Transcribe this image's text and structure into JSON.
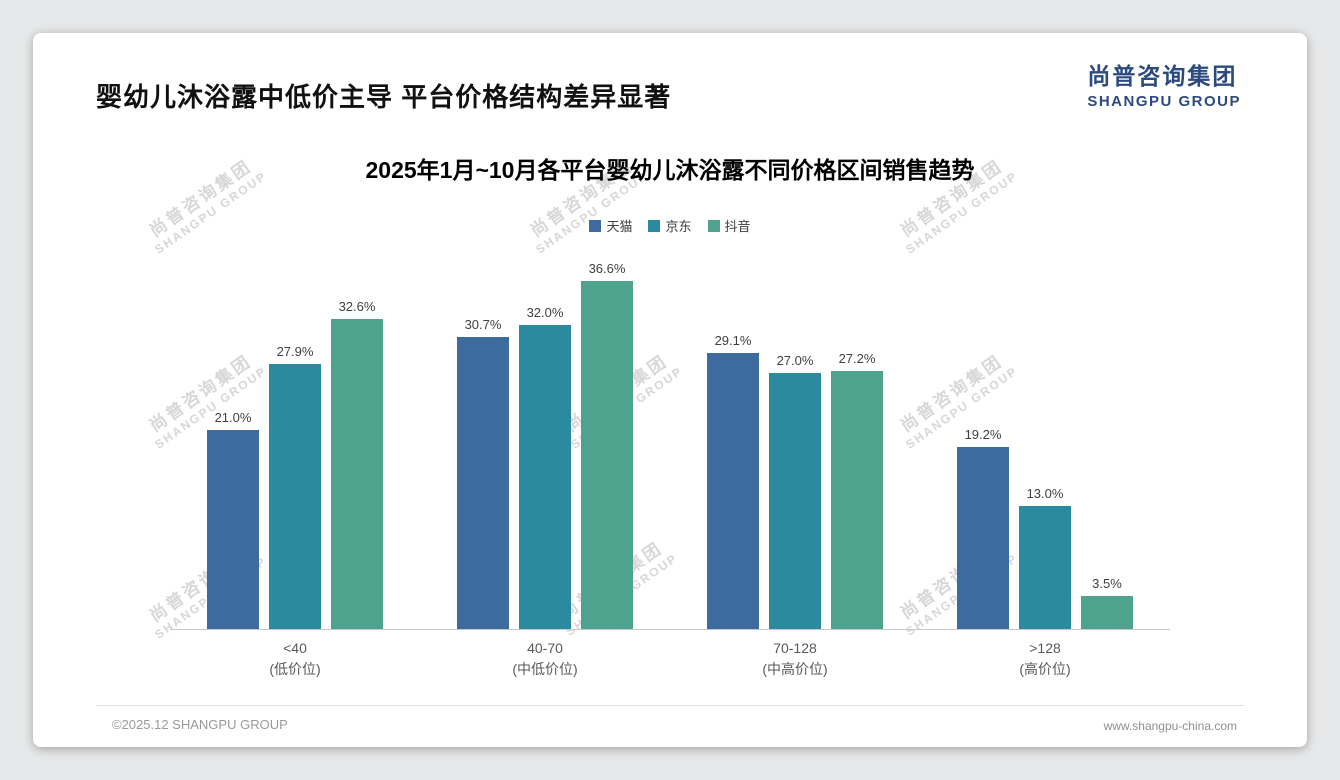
{
  "page": {
    "title": "婴幼儿沐浴露中低价主导 平台价格结构差异显著",
    "logo": {
      "cn": "尚普咨询集团",
      "en": "SHANGPU GROUP"
    },
    "watermark": {
      "line1": "尚普咨询集团",
      "line2": "SHANGPU GROUP"
    },
    "footer": {
      "left": "©2025.12 SHANGPU GROUP",
      "right": "www.shangpu-china.com"
    }
  },
  "chart_data": {
    "type": "bar",
    "title": "2025年1月~10月各平台婴幼儿沐浴露不同价格区间销售趋势",
    "categories": [
      {
        "label": "<40",
        "sub": "(低价位)"
      },
      {
        "label": "40-70",
        "sub": "(中低价位)"
      },
      {
        "label": "70-128",
        "sub": "(中高价位)"
      },
      {
        "label": ">128",
        "sub": "(高价位)"
      }
    ],
    "series": [
      {
        "name": "天猫",
        "color": "#3d6a9f",
        "values": [
          21.0,
          30.7,
          29.1,
          19.2
        ]
      },
      {
        "name": "京东",
        "color": "#2b8a9d",
        "values": [
          27.9,
          32.0,
          27.0,
          13.0
        ]
      },
      {
        "name": "抖音",
        "color": "#4fa28e",
        "values": [
          32.6,
          36.6,
          27.2,
          3.5
        ]
      }
    ],
    "value_suffix": "%",
    "ylim": [
      0,
      40
    ],
    "grid": false,
    "legend_position": "top"
  }
}
